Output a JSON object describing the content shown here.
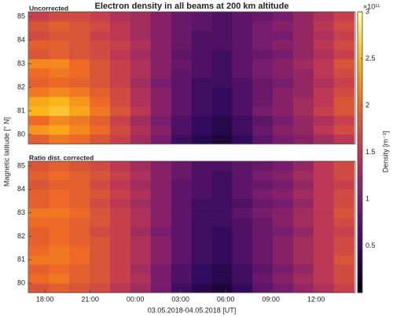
{
  "figure": {
    "title": "Electron density in all beams at 200 km altitude",
    "xlabel": "03.05.2018-04.05.2018 [UT]",
    "ylabel": "Magnetic latitude [° N]",
    "colorbar": {
      "label": "Density [m⁻³]",
      "exponent": "×10¹¹",
      "clim": [
        0,
        3
      ],
      "ticks": [
        0.5,
        1,
        1.5,
        2,
        2.5,
        3
      ],
      "colors": [
        "#000004",
        "#320a5e",
        "#781c6d",
        "#bc3754",
        "#ed6925",
        "#fbb61a",
        "#fcffa4"
      ]
    }
  },
  "chart_data": [
    {
      "type": "heatmap",
      "title": "Uncorrected",
      "x": [
        17.6,
        18.95,
        20.3,
        21.65,
        23.0,
        24.35,
        25.7,
        27.05,
        28.4,
        29.75,
        31.1,
        32.45,
        33.8,
        35.15,
        36.5,
        37.85
      ],
      "y": [
        79.8,
        80.2,
        80.6,
        81.0,
        81.4,
        81.8,
        82.2,
        82.6,
        83.0,
        83.4,
        83.8,
        84.2,
        84.6,
        85.0
      ],
      "xlim": [
        16.9,
        38.6
      ],
      "ylim": [
        79.6,
        85.2
      ],
      "yticks": [
        80,
        81,
        82,
        83,
        84,
        85
      ],
      "values": [
        [
          1.9,
          2.1,
          2.0,
          1.8,
          1.6,
          1.3,
          1.0,
          0.6,
          0.4,
          0.3,
          0.5,
          0.8,
          1.0,
          1.1,
          1.3,
          1.5
        ],
        [
          2.3,
          2.4,
          2.2,
          2.0,
          1.7,
          1.4,
          1.1,
          0.7,
          0.5,
          0.4,
          0.6,
          0.9,
          1.1,
          1.2,
          1.5,
          1.7
        ],
        [
          2.0,
          2.2,
          2.1,
          1.9,
          1.6,
          1.3,
          1.0,
          0.7,
          0.5,
          0.4,
          0.6,
          0.8,
          1.0,
          1.2,
          1.4,
          1.6
        ],
        [
          2.5,
          2.6,
          2.4,
          2.1,
          1.8,
          1.5,
          1.1,
          0.8,
          0.6,
          0.5,
          0.7,
          1.0,
          1.1,
          1.3,
          1.6,
          1.8
        ],
        [
          2.4,
          2.5,
          2.3,
          2.0,
          1.7,
          1.4,
          1.1,
          0.8,
          0.6,
          0.5,
          0.7,
          0.9,
          1.1,
          1.3,
          1.5,
          1.8
        ],
        [
          2.1,
          2.2,
          2.1,
          1.9,
          1.7,
          1.4,
          1.1,
          0.8,
          0.6,
          0.5,
          0.7,
          0.9,
          1.1,
          1.2,
          1.5,
          1.7
        ],
        [
          1.9,
          2.0,
          1.9,
          1.8,
          1.6,
          1.3,
          1.0,
          0.8,
          0.6,
          0.6,
          0.7,
          0.9,
          1.0,
          1.2,
          1.4,
          1.6
        ],
        [
          2.0,
          2.1,
          2.0,
          1.8,
          1.6,
          1.4,
          1.1,
          0.8,
          0.7,
          0.6,
          0.8,
          1.0,
          1.1,
          1.2,
          1.5,
          1.7
        ],
        [
          2.2,
          2.2,
          2.0,
          1.8,
          1.6,
          1.4,
          1.1,
          0.9,
          0.7,
          0.6,
          0.8,
          1.0,
          1.1,
          1.3,
          1.5,
          1.8
        ],
        [
          1.8,
          1.9,
          1.8,
          1.7,
          1.5,
          1.3,
          1.1,
          0.8,
          0.7,
          0.6,
          0.8,
          0.9,
          1.0,
          1.2,
          1.4,
          1.6
        ],
        [
          1.9,
          1.9,
          1.8,
          1.7,
          1.6,
          1.4,
          1.1,
          0.9,
          0.7,
          0.7,
          0.8,
          1.0,
          1.1,
          1.2,
          1.5,
          1.7
        ],
        [
          1.7,
          1.8,
          1.8,
          1.6,
          1.5,
          1.3,
          1.1,
          0.9,
          0.7,
          0.7,
          0.8,
          1.0,
          1.0,
          1.2,
          1.4,
          1.6
        ],
        [
          1.8,
          1.9,
          1.8,
          1.7,
          1.5,
          1.3,
          1.1,
          0.9,
          0.8,
          0.7,
          0.8,
          1.0,
          1.1,
          1.2,
          1.5,
          1.7
        ],
        [
          1.6,
          1.7,
          1.7,
          1.6,
          1.4,
          1.3,
          1.1,
          0.9,
          0.8,
          0.7,
          0.8,
          0.9,
          1.0,
          1.2,
          1.4,
          1.6
        ]
      ]
    },
    {
      "type": "heatmap",
      "title": "Ratio dist. corrected",
      "x": [
        17.6,
        18.95,
        20.3,
        21.65,
        23.0,
        24.35,
        25.7,
        27.05,
        28.4,
        29.75,
        31.1,
        32.45,
        33.8,
        35.15,
        36.5,
        37.85
      ],
      "y": [
        79.8,
        80.2,
        80.6,
        81.0,
        81.4,
        81.8,
        82.2,
        82.6,
        83.0,
        83.4,
        83.8,
        84.2,
        84.6,
        85.0
      ],
      "xlim": [
        16.9,
        38.6
      ],
      "ylim": [
        79.6,
        85.2
      ],
      "yticks": [
        80,
        81,
        82,
        83,
        84,
        85
      ],
      "xticks": [
        {
          "value": 18,
          "label": "18:00"
        },
        {
          "value": 21,
          "label": "21:00"
        },
        {
          "value": 24,
          "label": "00:00"
        },
        {
          "value": 27,
          "label": "03:00"
        },
        {
          "value": 30,
          "label": "06:00"
        },
        {
          "value": 33,
          "label": "09:00"
        },
        {
          "value": 36,
          "label": "12:00"
        }
      ],
      "values": [
        [
          1.8,
          1.9,
          1.8,
          1.7,
          1.5,
          1.3,
          1.0,
          0.6,
          0.4,
          0.3,
          0.5,
          0.8,
          1.0,
          1.2,
          1.4,
          1.6
        ],
        [
          2.0,
          2.1,
          1.9,
          1.8,
          1.6,
          1.4,
          1.0,
          0.7,
          0.5,
          0.4,
          0.6,
          0.9,
          1.1,
          1.3,
          1.5,
          1.7
        ],
        [
          1.9,
          2.0,
          1.9,
          1.8,
          1.6,
          1.3,
          1.0,
          0.7,
          0.5,
          0.4,
          0.6,
          0.8,
          1.0,
          1.2,
          1.5,
          1.7
        ],
        [
          2.1,
          2.1,
          2.0,
          1.8,
          1.6,
          1.4,
          1.1,
          0.8,
          0.6,
          0.5,
          0.7,
          0.9,
          1.1,
          1.3,
          1.5,
          1.8
        ],
        [
          2.0,
          2.1,
          2.0,
          1.8,
          1.6,
          1.4,
          1.1,
          0.8,
          0.6,
          0.5,
          0.7,
          0.9,
          1.1,
          1.3,
          1.5,
          1.7
        ],
        [
          1.9,
          2.0,
          1.9,
          1.8,
          1.6,
          1.4,
          1.1,
          0.8,
          0.6,
          0.5,
          0.7,
          0.9,
          1.1,
          1.3,
          1.5,
          1.7
        ],
        [
          1.9,
          2.0,
          1.9,
          1.7,
          1.6,
          1.3,
          1.0,
          0.8,
          0.6,
          0.5,
          0.7,
          0.9,
          1.0,
          1.2,
          1.5,
          1.6
        ],
        [
          2.0,
          2.0,
          1.9,
          1.8,
          1.6,
          1.4,
          1.1,
          0.8,
          0.6,
          0.6,
          0.7,
          0.9,
          1.1,
          1.3,
          1.5,
          1.7
        ],
        [
          2.1,
          2.1,
          2.0,
          1.8,
          1.6,
          1.4,
          1.1,
          0.8,
          0.6,
          0.6,
          0.8,
          1.0,
          1.1,
          1.3,
          1.5,
          1.8
        ],
        [
          1.9,
          2.0,
          1.9,
          1.7,
          1.5,
          1.3,
          1.1,
          0.8,
          0.6,
          0.6,
          0.7,
          0.9,
          1.0,
          1.2,
          1.5,
          1.7
        ],
        [
          1.9,
          2.0,
          1.9,
          1.8,
          1.6,
          1.4,
          1.1,
          0.8,
          0.7,
          0.6,
          0.8,
          1.0,
          1.1,
          1.3,
          1.5,
          1.7
        ],
        [
          1.8,
          1.9,
          1.9,
          1.7,
          1.5,
          1.3,
          1.1,
          0.8,
          0.7,
          0.6,
          0.8,
          0.9,
          1.0,
          1.2,
          1.5,
          1.6
        ],
        [
          1.9,
          2.0,
          1.9,
          1.8,
          1.6,
          1.4,
          1.1,
          0.9,
          0.7,
          0.6,
          0.8,
          1.0,
          1.1,
          1.3,
          1.5,
          1.7
        ],
        [
          1.8,
          1.9,
          1.8,
          1.7,
          1.5,
          1.3,
          1.1,
          0.9,
          0.7,
          0.7,
          0.8,
          0.9,
          1.0,
          1.2,
          1.5,
          1.7
        ]
      ]
    }
  ]
}
